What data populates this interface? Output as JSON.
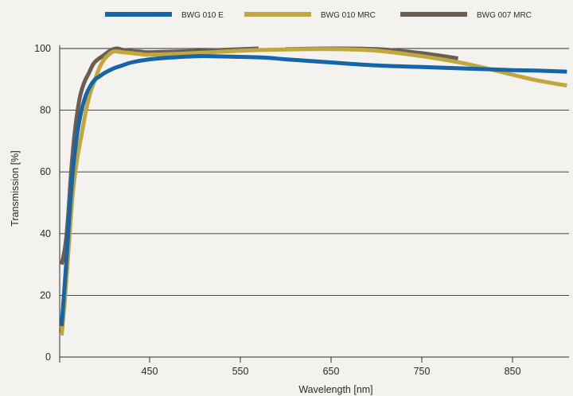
{
  "chart_data": {
    "type": "line",
    "title": "",
    "xlabel": "Wavelength [nm]",
    "ylabel": "Transmission [%]",
    "xlim": [
      350,
      910
    ],
    "ylim": [
      0,
      100
    ],
    "xticks": [
      450,
      550,
      650,
      750,
      850
    ],
    "yticks": [
      0,
      20,
      40,
      60,
      80,
      100
    ],
    "grid": "horizontal",
    "legend_position": "top",
    "series": [
      {
        "name": "BWG 010 E",
        "color": "#1565a8",
        "x": [
          353,
          358,
          362,
          366,
          370,
          375,
          380,
          385,
          390,
          395,
          400,
          410,
          420,
          430,
          450,
          470,
          500,
          520,
          550,
          580,
          600,
          650,
          700,
          750,
          800,
          850,
          880,
          910
        ],
        "y": [
          10,
          30,
          48,
          62,
          72,
          80,
          85,
          88,
          90,
          91,
          92,
          93.5,
          94.5,
          95.5,
          96.5,
          97,
          97.5,
          97.5,
          97.3,
          97,
          96.5,
          95.5,
          94.5,
          94,
          93.5,
          93,
          92.8,
          92.5
        ]
      },
      {
        "name": "BWG 010 MRC",
        "color": "#c1a83e",
        "x": [
          353,
          357,
          361,
          365,
          370,
          375,
          380,
          385,
          390,
          395,
          400,
          405,
          410,
          415,
          420,
          430,
          440,
          450,
          500,
          550,
          600,
          650,
          700,
          750,
          800,
          850,
          880,
          910
        ],
        "y": [
          7,
          20,
          36,
          52,
          64,
          72,
          80,
          86,
          90,
          94,
          96.5,
          98,
          99,
          99,
          98.8,
          98.5,
          98.2,
          98,
          98.5,
          99.3,
          99.7,
          99.8,
          99.3,
          97.5,
          95,
          91.5,
          89.5,
          88
        ]
      },
      {
        "name": "BWG 007 MRC",
        "color": "#6b5d53",
        "x": [
          353,
          357,
          360,
          364,
          368,
          373,
          378,
          383,
          388,
          393,
          398,
          405,
          410,
          415,
          420,
          430,
          440,
          450,
          500,
          570
        ],
        "y": [
          30,
          36,
          45,
          62,
          74,
          84,
          89,
          92,
          95,
          96.5,
          97.5,
          99,
          99.8,
          100,
          99.6,
          99.2,
          99,
          98.8,
          99.2,
          100
        ]
      },
      {
        "name": "BWG 007 MRC",
        "color": "#6b5d53",
        "x": [
          600,
          650,
          700,
          750,
          790
        ],
        "y": [
          99.8,
          100,
          99.8,
          98.5,
          96.8
        ]
      }
    ]
  },
  "legend": [
    {
      "label": "BWG 010 E",
      "color": "#1565a8"
    },
    {
      "label": "BWG 010 MRC",
      "color": "#c1a83e"
    },
    {
      "label": "BWG 007 MRC",
      "color": "#6b5d53"
    }
  ]
}
